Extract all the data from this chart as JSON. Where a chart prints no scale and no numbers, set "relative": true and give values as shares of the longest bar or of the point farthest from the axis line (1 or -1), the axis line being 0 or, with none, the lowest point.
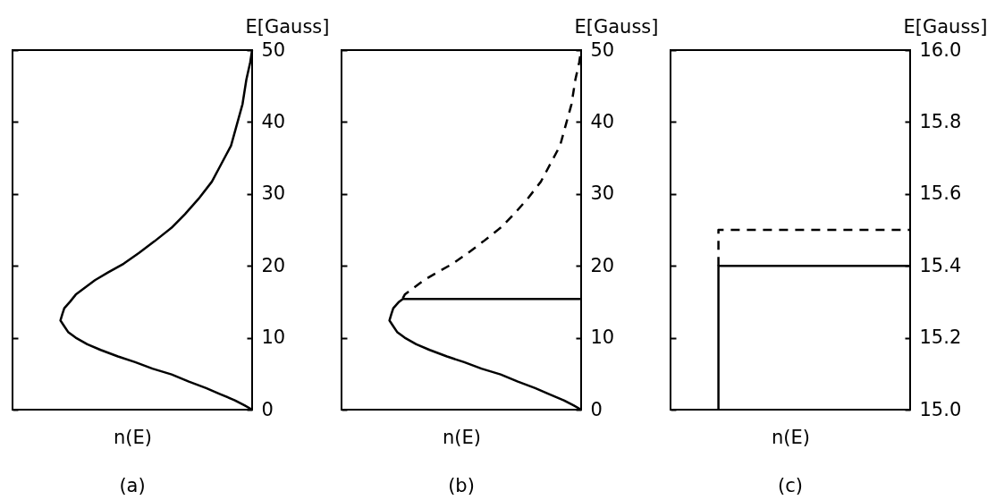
{
  "chart_data": [
    {
      "type": "line",
      "orientation": "horizontal",
      "relative": true,
      "title": "(a)",
      "xlabel": "n(E)",
      "ylabel": "E[Gauss]",
      "ylim": [
        0,
        50
      ],
      "yticks": [
        0,
        10,
        20,
        30,
        40,
        50
      ],
      "series": [
        {
          "color": "#000000",
          "line_style": "solid",
          "x": [
            0,
            0.6,
            1.3,
            2.2,
            3,
            3.9,
            4.9,
            5.7,
            6.6,
            7.4,
            8.3,
            9.1,
            10,
            10.8,
            11.6,
            12.4,
            13.3,
            14.1,
            15,
            16,
            17,
            18,
            19.1,
            20.3,
            21.8,
            23.4,
            25.3,
            27.2,
            29.3,
            31.7,
            34.2,
            36.7,
            39.6,
            42.5,
            45.9,
            48.3,
            50
          ],
          "values": [
            0,
            -0.04,
            -0.09,
            -0.17,
            -0.24,
            -0.33,
            -0.42,
            -0.52,
            -0.61,
            -0.7,
            -0.79,
            -0.86,
            -0.92,
            -0.96,
            -0.98,
            -1,
            -0.99,
            -0.98,
            -0.95,
            -0.92,
            -0.87,
            -0.82,
            -0.75,
            -0.67,
            -0.59,
            -0.51,
            -0.42,
            -0.35,
            -0.28,
            -0.21,
            -0.16,
            -0.11,
            -0.08,
            -0.05,
            -0.03,
            -0.01,
            0
          ]
        }
      ]
    },
    {
      "type": "line",
      "orientation": "horizontal",
      "relative": true,
      "title": "(b)",
      "xlabel": "n(E)",
      "ylabel": "E[Gauss]",
      "ylim": [
        0,
        50
      ],
      "yticks": [
        0,
        10,
        20,
        30,
        40,
        50
      ],
      "series": [
        {
          "color": "#000000",
          "line_style": "solid",
          "x": [
            0,
            0.6,
            1.3,
            2.2,
            3,
            3.9,
            4.9,
            5.7,
            6.6,
            7.4,
            8.3,
            9.1,
            10,
            10.8,
            11.6,
            12.4,
            13.3,
            14.1,
            15,
            15.4,
            15.4
          ],
          "values": [
            0,
            -0.04,
            -0.09,
            -0.17,
            -0.24,
            -0.33,
            -0.42,
            -0.52,
            -0.61,
            -0.7,
            -0.79,
            -0.86,
            -0.92,
            -0.96,
            -0.98,
            -1,
            -0.99,
            -0.98,
            -0.95,
            -0.93,
            0
          ]
        },
        {
          "color": "#000000",
          "line_style": "dashed",
          "x": [
            15.5,
            16,
            17,
            18,
            19.1,
            20.3,
            21.8,
            23.4,
            25.3,
            27.2,
            29.3,
            31.7,
            34.2,
            36.7,
            39.6,
            42.5,
            45.9,
            48.3,
            50
          ],
          "values": [
            -0.93,
            -0.92,
            -0.87,
            -0.82,
            -0.75,
            -0.67,
            -0.59,
            -0.51,
            -0.42,
            -0.35,
            -0.28,
            -0.21,
            -0.16,
            -0.11,
            -0.08,
            -0.05,
            -0.03,
            -0.01,
            0
          ]
        }
      ]
    },
    {
      "type": "line",
      "orientation": "horizontal",
      "relative": true,
      "title": "(c)",
      "xlabel": "n(E)",
      "ylabel": "E[Gauss]",
      "ylim": [
        15,
        16
      ],
      "yticks": [
        {
          "value": 15,
          "label": "15.0"
        },
        15.2,
        15.4,
        15.6,
        15.8,
        {
          "value": 16,
          "label": "16.0"
        }
      ],
      "series": [
        {
          "color": "#000000",
          "line_style": "solid",
          "x": [
            15,
            15.4,
            15.4
          ],
          "values": [
            -1,
            -1,
            0
          ]
        },
        {
          "color": "#000000",
          "line_style": "dashed",
          "x": [
            15.4,
            15.5,
            15.5
          ],
          "values": [
            -1,
            -1,
            0
          ]
        }
      ]
    }
  ]
}
